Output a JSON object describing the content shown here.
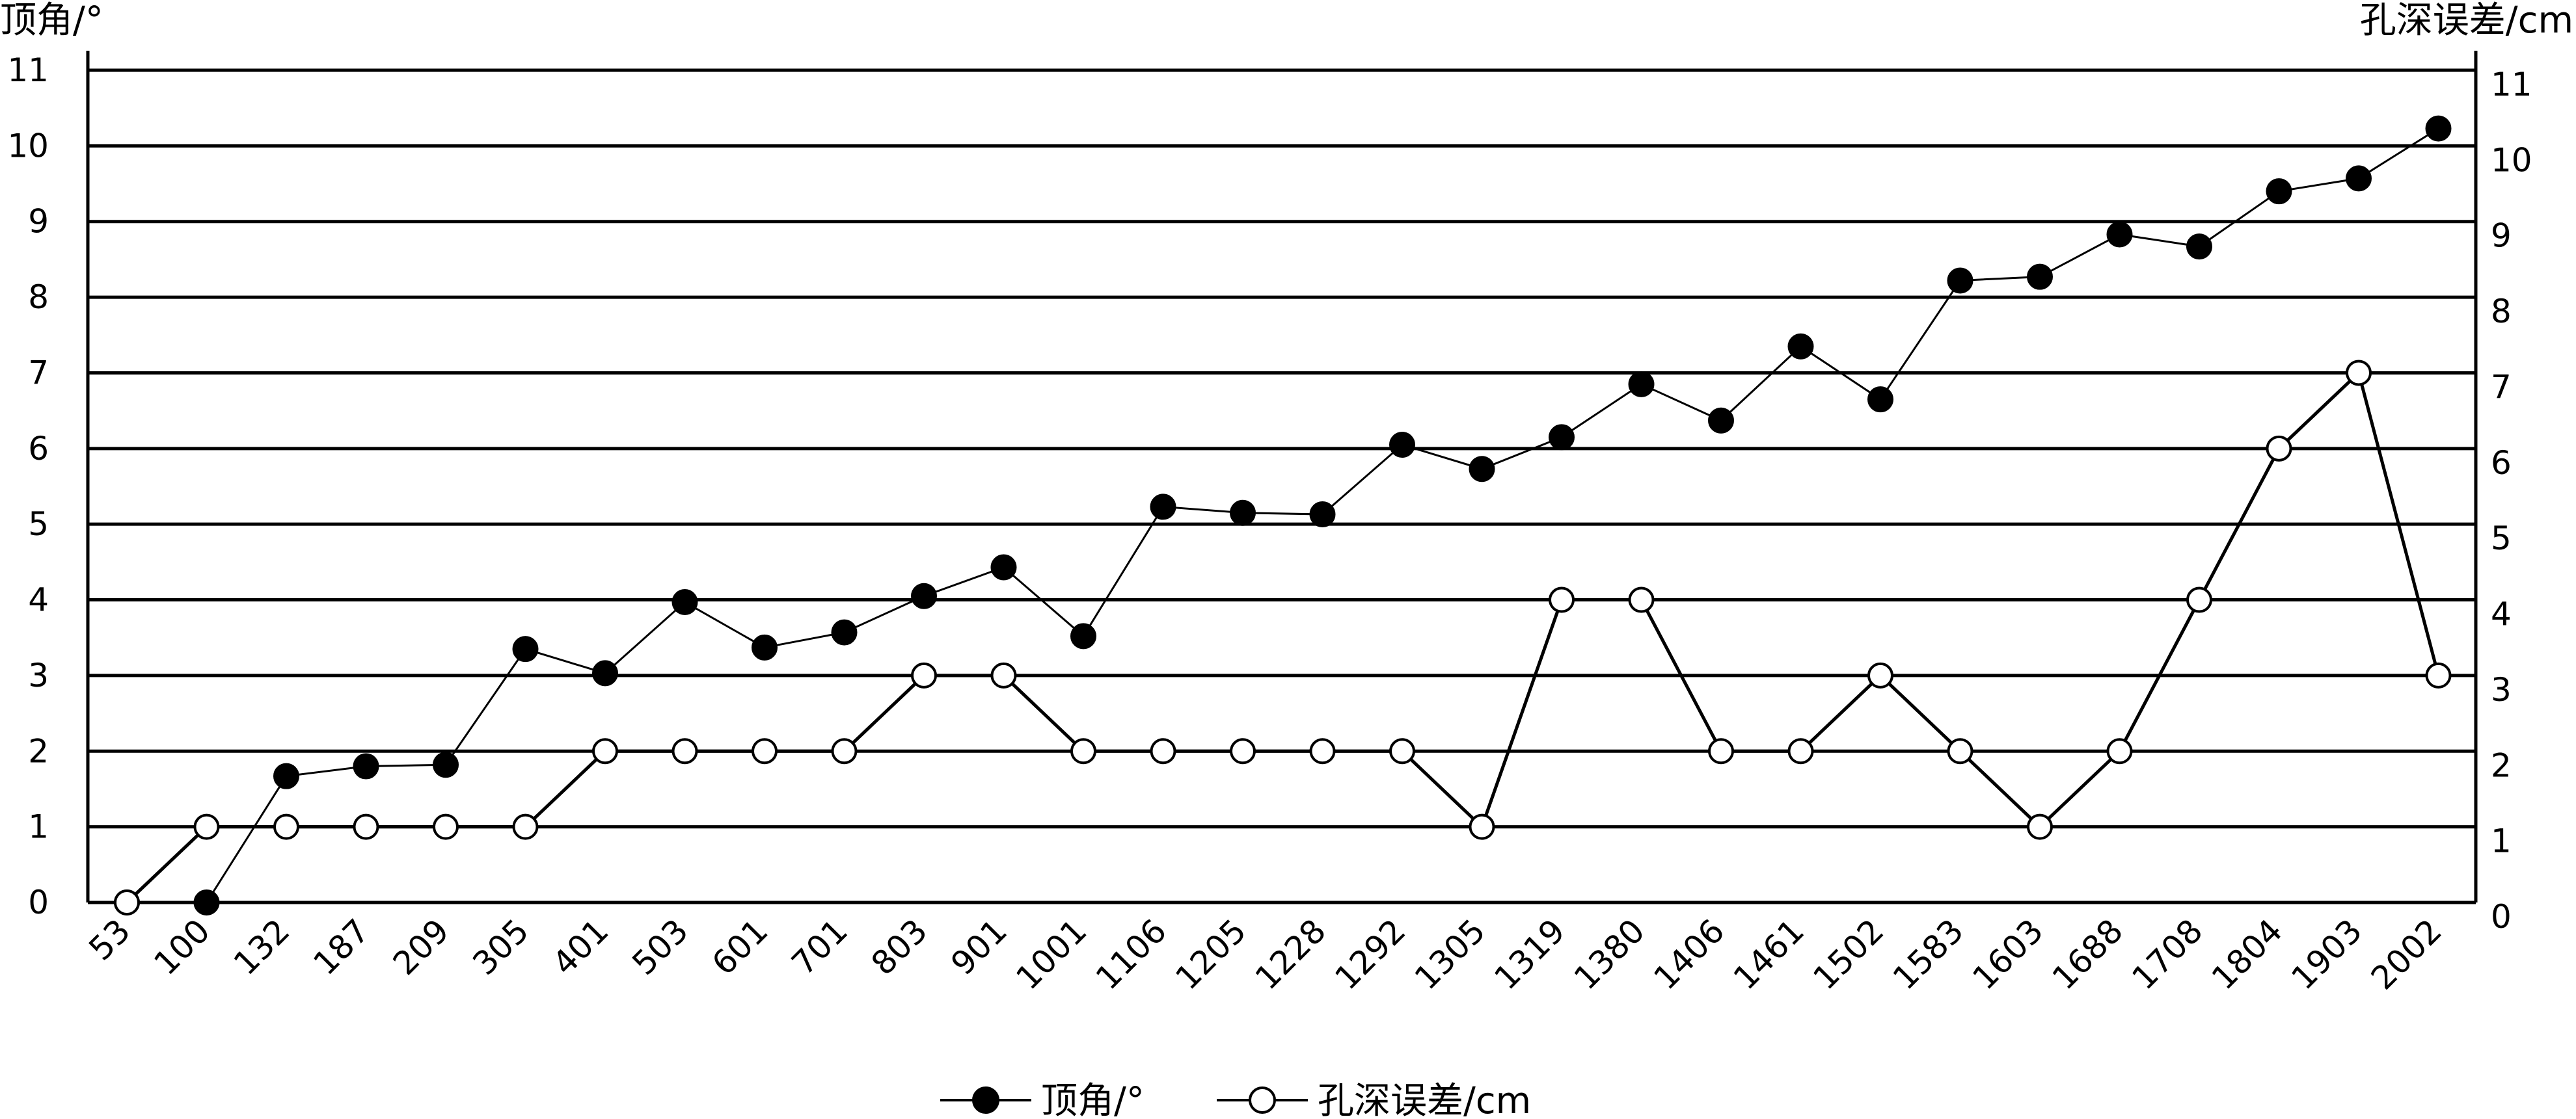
{
  "chart_data": {
    "type": "line",
    "title": "",
    "xlabel": "",
    "ylabel": "顶角/°",
    "ylabel_right": "孔深误差/cm",
    "ylim": [
      0,
      11
    ],
    "ylim_right": [
      0,
      11
    ],
    "yticks": [
      "0",
      "1",
      "2",
      "3",
      "4",
      "5",
      "6",
      "7",
      "8",
      "9",
      "10",
      "11"
    ],
    "grid": true,
    "legend_position": "bottom-center",
    "categories": [
      "53",
      "100",
      "132",
      "187",
      "209",
      "305",
      "401",
      "503",
      "601",
      "701",
      "803",
      "901",
      "1001",
      "1106",
      "1205",
      "1228",
      "1292",
      "1305",
      "1319",
      "1380",
      "1406",
      "1461",
      "1502",
      "1583",
      "1603",
      "1688",
      "1708",
      "1804",
      "1903",
      "2002"
    ],
    "series": [
      {
        "name": "顶角/°",
        "axis": "left",
        "marker": "filled-circle",
        "color": "#000000",
        "values": [
          0,
          0,
          1.67,
          1.8,
          1.82,
          3.35,
          3.03,
          3.97,
          3.37,
          3.57,
          4.05,
          4.43,
          3.52,
          5.23,
          5.15,
          5.13,
          6.05,
          5.73,
          6.15,
          6.85,
          6.37,
          7.35,
          6.65,
          8.22,
          8.27,
          8.83,
          8.67,
          9.4,
          9.57,
          10.23
        ]
      },
      {
        "name": "孔深误差/cm",
        "axis": "right",
        "marker": "open-circle",
        "color": "#000000",
        "values": [
          0,
          1,
          1,
          1,
          1,
          1,
          2,
          2,
          2,
          2,
          3,
          3,
          2,
          2,
          2,
          2,
          2,
          1,
          4,
          4,
          2,
          2,
          3,
          2,
          1,
          2,
          4,
          6,
          7,
          3
        ]
      }
    ]
  }
}
